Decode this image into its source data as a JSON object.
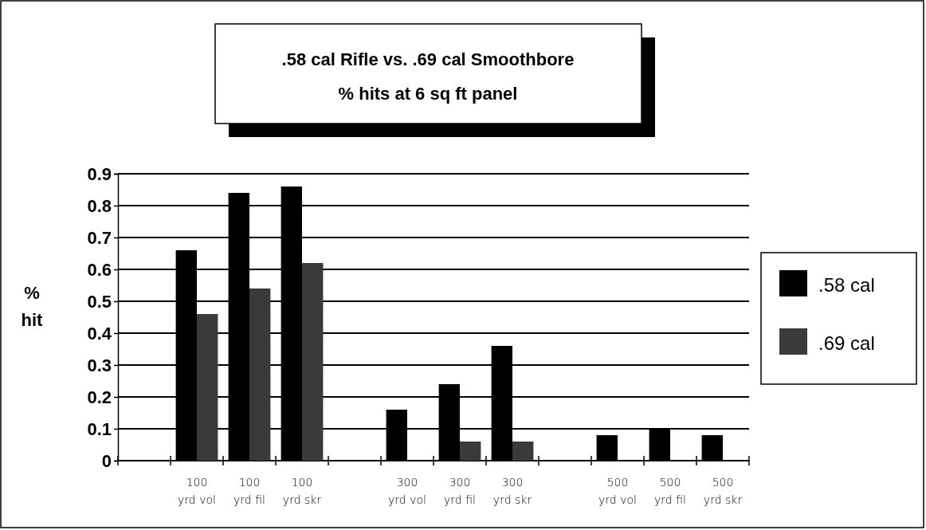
{
  "chart_data": {
    "type": "bar",
    "title": ".58 cal Rifle vs. .69 cal Smoothbore",
    "subtitle": "% hits at 6 sq ft panel",
    "ylabel": "%\nhit",
    "categories": [
      null,
      "100\nyrd vol",
      "100\nyrd fil",
      "100\nyrd skr",
      null,
      "300\nyrd vol",
      "300\nyrd fil",
      "300\nyrd skr",
      null,
      "500\nyrd vol",
      "500\nyrd fil",
      "500\nyrd skr"
    ],
    "series": [
      {
        "name": ".58 cal",
        "color": "#000000",
        "values": [
          null,
          0.66,
          0.84,
          0.86,
          null,
          0.16,
          0.24,
          0.36,
          null,
          0.08,
          0.1,
          0.08
        ]
      },
      {
        "name": ".69 cal",
        "color": "#3a3a3a",
        "values": [
          null,
          0.46,
          0.54,
          0.62,
          null,
          0,
          0.06,
          0.06,
          null,
          0,
          0,
          0
        ]
      }
    ],
    "ylim": [
      0,
      0.9
    ],
    "yticks": [
      0,
      0.1,
      0.2,
      0.3,
      0.4,
      0.5,
      0.6,
      0.7,
      0.8,
      0.9
    ],
    "grid": "y",
    "legend": "right"
  }
}
